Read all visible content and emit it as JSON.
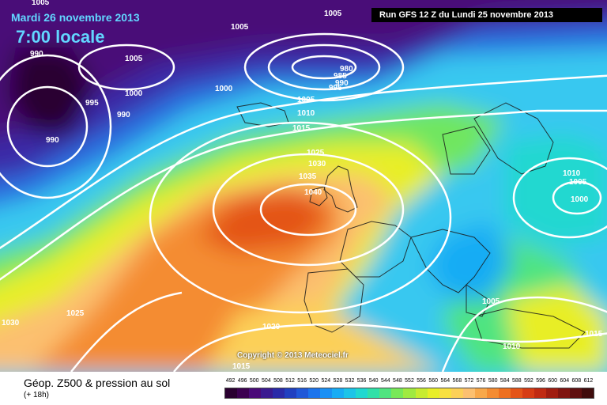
{
  "header": {
    "date": "Mardi 26 novembre 2013",
    "time": "7:00 locale",
    "run": "Run GFS 12 Z du Lundi 25 novembre 2013"
  },
  "copyright": "Copyright © 2013 Meteociel.fr",
  "footer": {
    "title": "Géop. Z500 & pression au sol",
    "subtitle": "(+ 18h)"
  },
  "scale": {
    "values": [
      "492",
      "496",
      "500",
      "504",
      "508",
      "512",
      "516",
      "520",
      "524",
      "528",
      "532",
      "536",
      "540",
      "544",
      "548",
      "552",
      "556",
      "560",
      "564",
      "568",
      "572",
      "576",
      "580",
      "584",
      "588",
      "592",
      "596",
      "600",
      "604",
      "608",
      "612"
    ],
    "colors": [
      "#2a0030",
      "#3c0050",
      "#4a0a78",
      "#3a1a90",
      "#2a2aa8",
      "#2040c0",
      "#2058d8",
      "#1c74ec",
      "#1a90f4",
      "#18acf4",
      "#1cc4e8",
      "#20d8d0",
      "#30e0a8",
      "#50e480",
      "#78e858",
      "#a0ea40",
      "#c8ec30",
      "#e8ee28",
      "#f8e040",
      "#fcd058",
      "#fcc070",
      "#f8a84a",
      "#f48c32",
      "#ee7020",
      "#e45418",
      "#d63c14",
      "#c02a12",
      "#a01c10",
      "#801410",
      "#601010",
      "#400c0c"
    ]
  },
  "isobars": [
    "1005",
    "1005",
    "1005",
    "990",
    "1005",
    "1000",
    "995",
    "990",
    "990",
    "980",
    "985",
    "990",
    "995",
    "1000",
    "1005",
    "1010",
    "1015",
    "1025",
    "1030",
    "1035",
    "1040",
    "1010",
    "1005",
    "1000",
    "1005",
    "1010",
    "1015",
    "1030",
    "1025",
    "1020",
    "1015"
  ]
}
